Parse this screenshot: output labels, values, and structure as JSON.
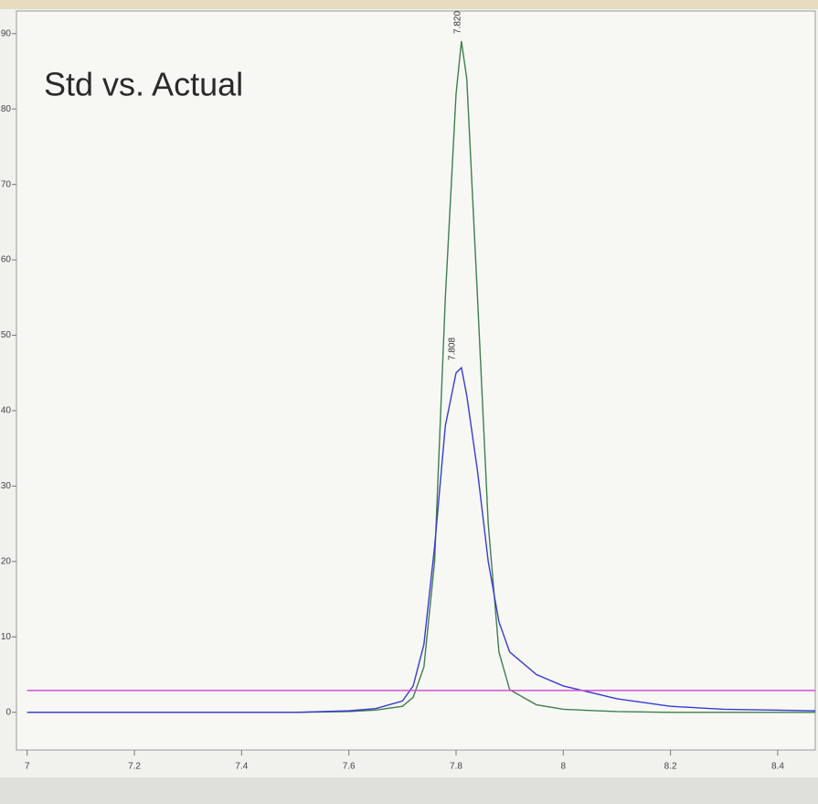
{
  "chart_data": {
    "type": "line",
    "title": "Std vs. Actual",
    "x": [
      7.0,
      7.5,
      7.6,
      7.65,
      7.7,
      7.72,
      7.74,
      7.76,
      7.78,
      7.8,
      7.81,
      7.82,
      7.84,
      7.86,
      7.88,
      7.9,
      7.95,
      8.0,
      8.1,
      8.2,
      8.3,
      8.47
    ],
    "series": [
      {
        "color": "#3f7f4f",
        "values": [
          0,
          0,
          0.1,
          0.3,
          0.8,
          2,
          6,
          20,
          55,
          82,
          89,
          84,
          55,
          25,
          8,
          3,
          1,
          0.4,
          0.1,
          0,
          0,
          0
        ]
      },
      {
        "color": "#3a3ad0",
        "values": [
          0,
          0,
          0.2,
          0.5,
          1.5,
          3.5,
          9,
          22,
          38,
          45,
          45.7,
          42,
          32,
          20,
          12,
          8,
          5,
          3.5,
          1.8,
          0.8,
          0.4,
          0.2
        ]
      },
      {
        "color": "#d050d0",
        "values": [
          2.9,
          2.9,
          2.9,
          2.9,
          2.9,
          2.9,
          2.9,
          2.9,
          2.9,
          2.9,
          2.9,
          2.9,
          2.9,
          2.9,
          2.9,
          2.9,
          2.9,
          2.9,
          2.9,
          2.9,
          2.9,
          2.9
        ]
      }
    ],
    "annotations": [
      {
        "text": "7.820",
        "x": 7.81,
        "y": 89
      },
      {
        "text": "7.808",
        "x": 7.8,
        "y": 45.7
      }
    ],
    "xlim": [
      6.98,
      8.47
    ],
    "xticks": [
      7,
      7.2,
      7.4,
      7.6,
      7.8,
      8,
      8.2,
      8.4
    ],
    "ylim": [
      -5,
      93
    ],
    "yticks": [
      0,
      10,
      20,
      30,
      40,
      50,
      60,
      70,
      80,
      90
    ]
  }
}
